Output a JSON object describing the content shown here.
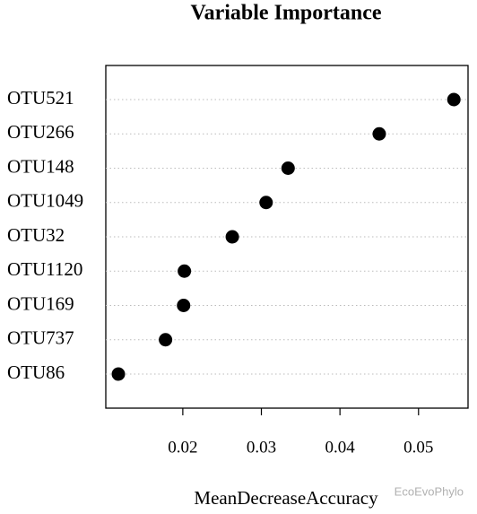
{
  "chart_data": {
    "type": "dot",
    "title": "Variable Importance",
    "x_label": "MeanDecreaseAccuracy",
    "categories": [
      "OTU521",
      "OTU266",
      "OTU148",
      "OTU1049",
      "OTU32",
      "OTU1120",
      "OTU169",
      "OTU737",
      "OTU86"
    ],
    "values": [
      0.0545,
      0.045,
      0.0334,
      0.0306,
      0.0263,
      0.0202,
      0.0201,
      0.0178,
      0.0118
    ],
    "color": "#000000",
    "xlim": [
      0.0102,
      0.0563
    ],
    "xticks": [
      0.02,
      0.03,
      0.04,
      0.05
    ],
    "grid": true
  },
  "watermark": "EcoEvoPhylo"
}
